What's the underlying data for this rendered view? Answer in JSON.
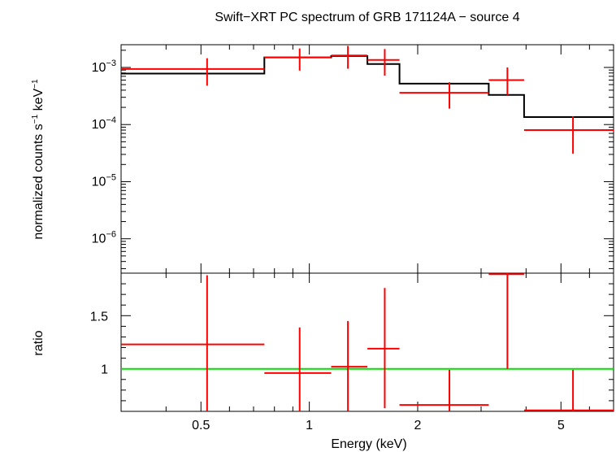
{
  "chart_data": {
    "type": "scatter",
    "title": "Swift−XRT PC spectrum of GRB 171124A − source 4",
    "xlabel": "Energy (keV)",
    "x_scale": "log",
    "xlim": [
      0.3,
      7.0
    ],
    "x_ticks": [
      {
        "value": 0.5,
        "label": "0.5"
      },
      {
        "value": 1,
        "label": "1"
      },
      {
        "value": 2,
        "label": "2"
      },
      {
        "value": 5,
        "label": "5"
      }
    ],
    "colors": {
      "data": "#ff0000",
      "model": "#000000",
      "unity": "#00e000",
      "frame": "#000000"
    },
    "panels": [
      {
        "name": "spectrum",
        "ylabel": {
          "main": "normalized counts s",
          "exp1": "−1",
          "mid": " keV",
          "exp2": "−1"
        },
        "y_scale": "log",
        "ylim": [
          2.5e-07,
          0.0025
        ],
        "y_ticks": [
          {
            "value": 0.001,
            "base": "10",
            "exp": "−3"
          },
          {
            "value": 0.0001,
            "base": "10",
            "exp": "−4"
          },
          {
            "value": 1e-05,
            "base": "10",
            "exp": "−5"
          },
          {
            "value": 1e-06,
            "base": "10",
            "exp": "−6"
          }
        ],
        "data_points": [
          {
            "x_lo": 0.3,
            "x_hi": 0.75,
            "x": 0.52,
            "y": 0.00094,
            "y_lo": 0.00048,
            "y_hi": 0.00145
          },
          {
            "x_lo": 0.75,
            "x_hi": 1.15,
            "x": 0.94,
            "y": 0.0015,
            "y_lo": 0.00088,
            "y_hi": 0.00215
          },
          {
            "x_lo": 1.15,
            "x_hi": 1.45,
            "x": 1.28,
            "y": 0.00162,
            "y_lo": 0.00095,
            "y_hi": 0.00238
          },
          {
            "x_lo": 1.45,
            "x_hi": 1.78,
            "x": 1.62,
            "y": 0.00135,
            "y_lo": 0.00072,
            "y_hi": 0.0021
          },
          {
            "x_lo": 1.78,
            "x_hi": 3.15,
            "x": 2.45,
            "y": 0.00036,
            "y_lo": 0.00019,
            "y_hi": 0.00055
          },
          {
            "x_lo": 3.15,
            "x_hi": 3.95,
            "x": 3.55,
            "y": 0.0006,
            "y_lo": 0.00033,
            "y_hi": 0.001
          },
          {
            "x_lo": 3.95,
            "x_hi": 7.0,
            "x": 5.4,
            "y": 8e-05,
            "y_lo": 3.1e-05,
            "y_hi": 0.00014
          }
        ],
        "model_steps": [
          {
            "x_lo": 0.3,
            "x_hi": 0.75,
            "y": 0.00078
          },
          {
            "x_lo": 0.75,
            "x_hi": 1.15,
            "y": 0.0015
          },
          {
            "x_lo": 1.15,
            "x_hi": 1.45,
            "y": 0.00158
          },
          {
            "x_lo": 1.45,
            "x_hi": 1.78,
            "y": 0.00115
          },
          {
            "x_lo": 1.78,
            "x_hi": 3.15,
            "y": 0.00052
          },
          {
            "x_lo": 3.15,
            "x_hi": 3.95,
            "y": 0.00033
          },
          {
            "x_lo": 3.95,
            "x_hi": 7.0,
            "y": 0.000135
          }
        ]
      },
      {
        "name": "ratio",
        "ylabel": "ratio",
        "y_scale": "linear",
        "ylim": [
          0.6,
          1.9
        ],
        "y_ticks": [
          {
            "value": 1,
            "label": "1"
          },
          {
            "value": 1.5,
            "label": "1.5"
          }
        ],
        "unity_line": 1,
        "data_points": [
          {
            "x_lo": 0.3,
            "x_hi": 0.75,
            "x": 0.52,
            "y": 1.23,
            "y_lo": 0.6,
            "y_hi": 1.88
          },
          {
            "x_lo": 0.75,
            "x_hi": 1.15,
            "x": 0.94,
            "y": 0.96,
            "y_lo": 0.6,
            "y_hi": 1.39
          },
          {
            "x_lo": 1.15,
            "x_hi": 1.45,
            "x": 1.28,
            "y": 1.02,
            "y_lo": 0.6,
            "y_hi": 1.45
          },
          {
            "x_lo": 1.45,
            "x_hi": 1.78,
            "x": 1.62,
            "y": 1.19,
            "y_lo": 0.63,
            "y_hi": 1.76
          },
          {
            "x_lo": 1.78,
            "x_hi": 3.15,
            "x": 2.45,
            "y": 0.66,
            "y_lo": 0.6,
            "y_hi": 0.99
          },
          {
            "x_lo": 3.15,
            "x_hi": 3.95,
            "x": 3.55,
            "y": 1.89,
            "y_lo": 1.0,
            "y_hi": 1.9
          },
          {
            "x_lo": 3.95,
            "x_hi": 7.0,
            "x": 5.4,
            "y": 0.61,
            "y_lo": 0.6,
            "y_hi": 0.99
          }
        ]
      }
    ]
  }
}
